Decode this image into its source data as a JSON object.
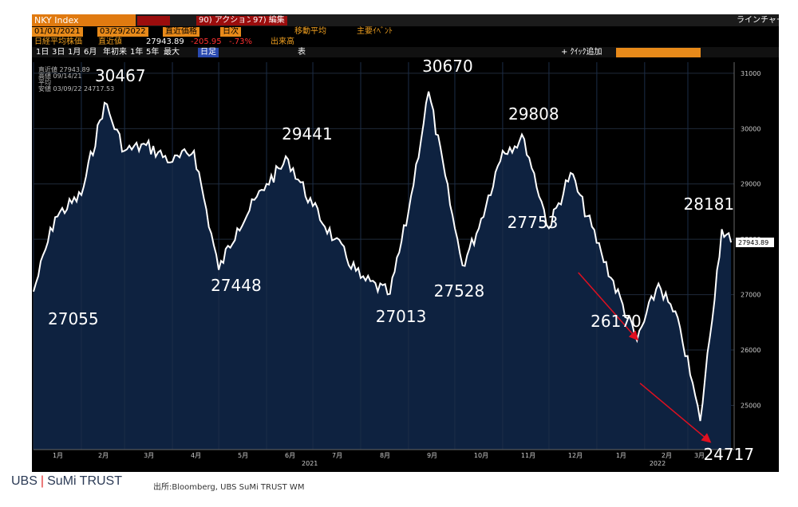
{
  "terminal": {
    "ticker": "NKY Index",
    "action_btn": "90) アクション",
    "edit_btn": "97) 編集",
    "line_chart_label": "ラインチャート",
    "date_start": "01/01/2021",
    "date_end": "03/29/2022",
    "field_close": "直近価格",
    "field_period": "日次",
    "moving_avg": "移動平均",
    "key_events": "主要ｲﾍﾞﾝﾄ",
    "security_name": "日経平均株価",
    "last_label": "直近値",
    "last_value": "27943.89",
    "change": "-205.95",
    "change_pct": "-.73%",
    "volume_label": "出来高",
    "periods": [
      "1日",
      "3日",
      "1月",
      "6月",
      "年初来",
      "1年",
      "5年",
      "最大"
    ],
    "period_selected": "日足",
    "table_label": "表",
    "quick_add": "+ ｸｲｯｸ追加",
    "legend": [
      {
        "name": "直近値",
        "value": "27943.89"
      },
      {
        "name": "高値 09/14/21",
        "value": ""
      },
      {
        "name": "平均",
        "value": ""
      },
      {
        "name": "安値 03/09/22",
        "value": "24717.53"
      }
    ],
    "last_price_tag": "27943.89"
  },
  "chart_data": {
    "type": "area",
    "series_name": "NKY Index",
    "yticks": [
      25000,
      26000,
      27000,
      28000,
      29000,
      30000,
      31000
    ],
    "ylim": [
      24200,
      31200
    ],
    "xticks": [
      "1月",
      "2月",
      "3月",
      "4月",
      "5月",
      "6月",
      "7月",
      "8月",
      "9月",
      "10月",
      "11月",
      "12月",
      "1月",
      "2月",
      "3月"
    ],
    "year_labels": [
      "2021",
      "2022"
    ],
    "x": [
      "2021-01-01",
      "2021-01-15",
      "2021-02-01",
      "2021-02-16",
      "2021-03-01",
      "2021-03-15",
      "2021-04-01",
      "2021-04-15",
      "2021-05-01",
      "2021-05-13",
      "2021-06-01",
      "2021-06-15",
      "2021-07-01",
      "2021-07-15",
      "2021-08-01",
      "2021-08-20",
      "2021-09-01",
      "2021-09-14",
      "2021-10-01",
      "2021-10-06",
      "2021-10-15",
      "2021-11-01",
      "2021-11-15",
      "2021-12-01",
      "2021-12-15",
      "2022-01-04",
      "2022-01-27",
      "2022-02-10",
      "2022-02-24",
      "2022-03-09",
      "2022-03-23",
      "2022-03-29"
    ],
    "values": [
      27055,
      28400,
      28800,
      30467,
      29600,
      29700,
      29400,
      29600,
      27448,
      28200,
      29000,
      29441,
      28600,
      28000,
      27300,
      27013,
      28500,
      30670,
      28200,
      27528,
      28100,
      29600,
      29808,
      28200,
      29200,
      27753,
      26170,
      27200,
      26400,
      24717,
      28181,
      27943.89
    ],
    "annotations": [
      {
        "text": "30467",
        "x": "2021-02-16",
        "value": 30467
      },
      {
        "text": "27055",
        "x": "2021-01-01",
        "value": 27055
      },
      {
        "text": "29441",
        "x": "2021-06-15",
        "value": 29441
      },
      {
        "text": "27448",
        "x": "2021-05-01",
        "value": 27448
      },
      {
        "text": "30670",
        "x": "2021-09-14",
        "value": 30670
      },
      {
        "text": "27013",
        "x": "2021-08-20",
        "value": 27013
      },
      {
        "text": "29808",
        "x": "2021-11-15",
        "value": 29808
      },
      {
        "text": "27528",
        "x": "2021-10-06",
        "value": 27528
      },
      {
        "text": "27753",
        "x": "2022-01-04",
        "value": 27753
      },
      {
        "text": "26170",
        "x": "2022-01-27",
        "value": 26170
      },
      {
        "text": "28181",
        "x": "2022-03-23",
        "value": 28181
      },
      {
        "text": "24717",
        "x": "2022-03-09",
        "value": 24717
      }
    ],
    "colors": {
      "line": "#ffffff",
      "fill": "#0e2240",
      "background": "#000000",
      "arrow": "#e01020",
      "axis_text": "#cccccc"
    }
  },
  "footer": {
    "logo_left": "UBS",
    "logo_right": "SuMi TRUST",
    "source": "出所:Bloomberg, UBS SuMi TRUST WM"
  }
}
